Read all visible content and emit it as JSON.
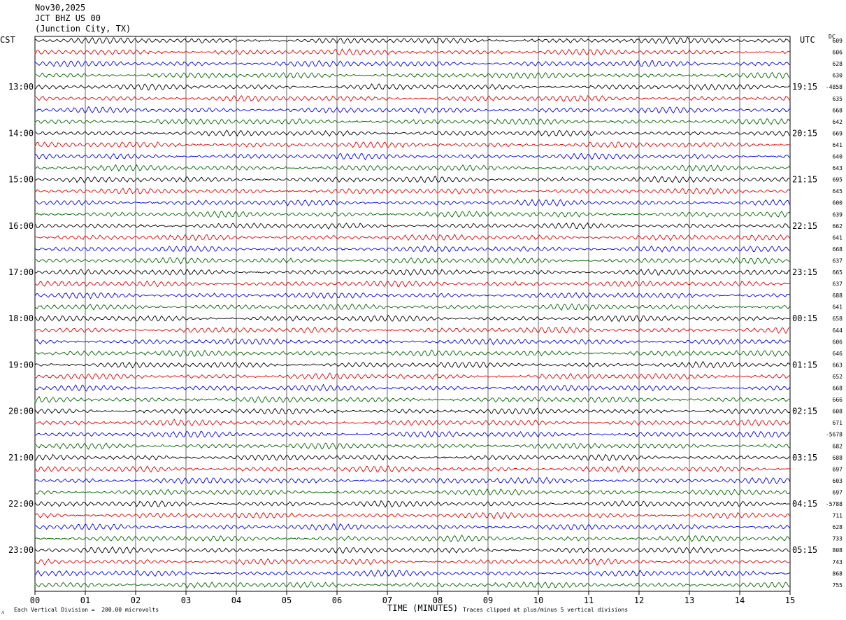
{
  "header": {
    "date": "Nov30,2025",
    "station": "JCT BHZ US 00",
    "location": "(Junction City, TX)"
  },
  "left_tz": "CST",
  "right_tz": "UTC",
  "dc_label": "DC",
  "footer": {
    "scale_note": "Each Vertical Division =  200.00 microvolts",
    "axis_title": "TIME (MINUTES)",
    "clip_note": "Traces clipped at plus/minus 5 vertical divisions",
    "corner_mark": "ᴧ"
  },
  "colors": {
    "cycle": [
      "#000000",
      "#e00000",
      "#0000e0",
      "#006400"
    ],
    "grid": "#000000"
  },
  "chart_data": {
    "type": "line",
    "title": "",
    "xlabel": "TIME (MINUTES)",
    "ylabel": "",
    "xlim": [
      0,
      15
    ],
    "x_ticks": [
      "00",
      "01",
      "02",
      "03",
      "04",
      "05",
      "06",
      "07",
      "08",
      "09",
      "10",
      "11",
      "12",
      "13",
      "14",
      "15"
    ],
    "trace_count": 48,
    "minutes_per_trace": 15,
    "left_hour_labels": [
      "13:00",
      "14:00",
      "15:00",
      "16:00",
      "17:00",
      "18:00",
      "19:00",
      "20:00",
      "21:00",
      "22:00",
      "23:00"
    ],
    "right_hour_labels": [
      "19:15",
      "20:15",
      "21:15",
      "22:15",
      "23:15",
      "00:15",
      "01:15",
      "02:15",
      "03:15",
      "04:15",
      "05:15"
    ],
    "hour_label_first_trace": 4,
    "dc_offsets": [
      "609",
      "606",
      "628",
      "630",
      "-4858",
      "635",
      "668",
      "642",
      "669",
      "641",
      "640",
      "643",
      "695",
      "645",
      "600",
      "639",
      "662",
      "641",
      "668",
      "637",
      "665",
      "637",
      "688",
      "641",
      "658",
      "644",
      "606",
      "646",
      "663",
      "652",
      "668",
      "666",
      "608",
      "671",
      "-5678",
      "682",
      "688",
      "697",
      "603",
      "697",
      "-5788",
      "711",
      "628",
      "733",
      "808",
      "743",
      "868",
      "755"
    ],
    "grid": true,
    "clip_divisions": 5,
    "units_per_division": "200.00 microvolts"
  }
}
